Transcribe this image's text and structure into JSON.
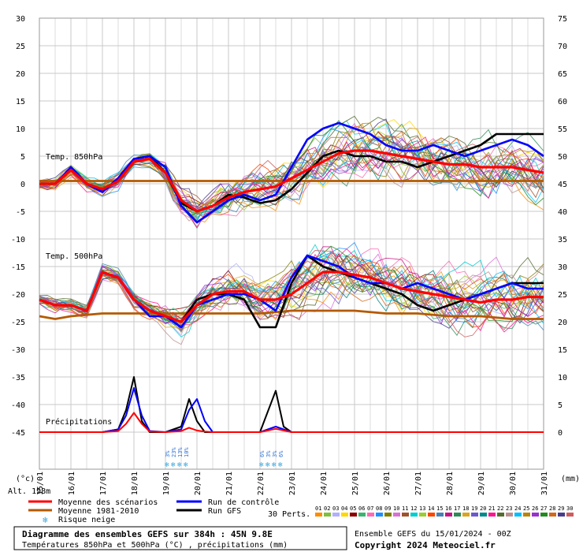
{
  "colors": {
    "grid": "#c8c8c8",
    "mean": "#ff0000",
    "control": "#0000ff",
    "gfs": "#000000",
    "climo": "#b45a00",
    "precip_fill": "#ff0000"
  },
  "labels": {
    "temp850": "Temp. 850hPa",
    "temp500": "Temp. 500hPa",
    "precip": "Précipitations",
    "unit_c": "(°c)",
    "unit_mm": "(mm)",
    "alt": "Alt. 198m",
    "legend_mean": "Moyenne des scénarios",
    "legend_climo": "Moyenne 1981-2010",
    "legend_snow": "Risque neige",
    "legend_control": "Run de contrôle",
    "legend_gfs": "Run GFS",
    "perts_label": "30 Perts.",
    "title_line1": "Diagramme des ensembles GEFS sur 384h : 45N 9.8E",
    "title_line2": "Températures 850hPa et 500hPa (°C) , précipitations (mm)",
    "ensemble_run": "Ensemble GEFS du 15/01/2024 - 00Z",
    "copyright": "Copyright 2024 Meteociel.fr"
  },
  "perts": [
    "01",
    "02",
    "03",
    "04",
    "05",
    "06",
    "07",
    "08",
    "09",
    "10",
    "11",
    "12",
    "13",
    "14",
    "15",
    "16",
    "17",
    "18",
    "19",
    "20",
    "21",
    "22",
    "23",
    "24",
    "25",
    "26",
    "27",
    "28",
    "29",
    "30"
  ],
  "pert_colors": [
    "#ff8c00",
    "#7fbf3f",
    "#b0b0ff",
    "#ffd700",
    "#8b0000",
    "#3cb371",
    "#ff69b4",
    "#1e90ff",
    "#808000",
    "#da70d6",
    "#a0522d",
    "#00ced1",
    "#9acd32",
    "#ff4500",
    "#4682b4",
    "#c71585",
    "#2e8b57",
    "#daa520",
    "#6a5acd",
    "#008b8b",
    "#ff1493",
    "#556b2f",
    "#bc8f8f",
    "#00bfff",
    "#b8860b",
    "#9932cc",
    "#228b22",
    "#d2691e",
    "#483d8b",
    "#cd5c5c"
  ],
  "snow_risk": [
    {
      "day": 19.0,
      "values": [
        "3%",
        "23%",
        "13%",
        "10%"
      ]
    },
    {
      "day": 22.0,
      "values": [
        "6%",
        "3%",
        "3%",
        "6%"
      ]
    }
  ],
  "chart_data": {
    "type": "line",
    "x_unit": "day of January 2024",
    "xlim": [
      15.0,
      31.0
    ],
    "x_ticks": [
      "15/01",
      "16/01",
      "17/01",
      "18/01",
      "19/01",
      "20/01",
      "21/01",
      "22/01",
      "23/01",
      "24/01",
      "25/01",
      "26/01",
      "27/01",
      "28/01",
      "29/01",
      "30/01",
      "31/01"
    ],
    "y_left_ticks": [
      30,
      25,
      20,
      15,
      10,
      5,
      0,
      -5,
      -10,
      -15,
      -20,
      -25,
      -30,
      -35,
      -40,
      -45
    ],
    "y_right_ticks": [
      75,
      70,
      65,
      60,
      55,
      50,
      45,
      40,
      35,
      30,
      25,
      20,
      15,
      10,
      5,
      0
    ],
    "ylim_left": [
      -45,
      30
    ],
    "y_right_relation": "right = left + 45",
    "grid": true,
    "series": [
      {
        "name": "Moyenne des scénarios",
        "panel": "t850",
        "x": [
          15.0,
          15.5,
          16.0,
          16.5,
          17.0,
          17.5,
          18.0,
          18.5,
          19.0,
          19.5,
          20.0,
          20.5,
          21.0,
          21.5,
          22.0,
          22.5,
          23.0,
          23.5,
          24.0,
          24.5,
          25.0,
          25.5,
          26.0,
          26.5,
          27.0,
          27.5,
          28.0,
          28.5,
          29.0,
          29.5,
          30.0,
          30.5,
          31.0
        ],
        "y": [
          0,
          0,
          2.5,
          0,
          -1,
          0.5,
          4,
          4.5,
          2,
          -3,
          -5,
          -4,
          -2.5,
          -1.5,
          -1,
          -0.5,
          1,
          2.5,
          4,
          5.5,
          6,
          6,
          5.5,
          5,
          4.5,
          4,
          3.5,
          3.5,
          3,
          3,
          3,
          2.5,
          2
        ]
      },
      {
        "name": "Moyenne des scénarios",
        "panel": "t500",
        "x": [
          15.0,
          15.5,
          16.0,
          16.5,
          17.0,
          17.5,
          18.0,
          18.5,
          19.0,
          19.5,
          20.0,
          20.5,
          21.0,
          21.5,
          22.0,
          22.5,
          23.0,
          23.5,
          24.0,
          24.5,
          25.0,
          25.5,
          26.0,
          26.5,
          27.0,
          27.5,
          28.0,
          28.5,
          29.0,
          29.5,
          30.0,
          30.5,
          31.0
        ],
        "y": [
          -21,
          -22,
          -22,
          -23,
          -16,
          -17,
          -21,
          -23,
          -24,
          -25,
          -22,
          -20,
          -19.5,
          -19.5,
          -21,
          -21,
          -20,
          -18,
          -16,
          -16,
          -16.5,
          -17,
          -18,
          -19,
          -19.5,
          -20,
          -20.5,
          -21,
          -21.5,
          -21,
          -21,
          -20.5,
          -20.5
        ]
      },
      {
        "name": "Run de contrôle",
        "panel": "t850",
        "x": [
          15.0,
          15.5,
          16.0,
          16.5,
          17.0,
          17.5,
          18.0,
          18.5,
          19.0,
          19.5,
          20.0,
          20.5,
          21.0,
          21.5,
          22.0,
          22.5,
          23.0,
          23.5,
          24.0,
          24.5,
          25.0,
          25.5,
          26.0,
          26.5,
          27.0,
          27.5,
          28.0,
          28.5,
          29.0,
          29.5,
          30.0,
          30.5,
          31.0
        ],
        "y": [
          0,
          0,
          3,
          0,
          -1.5,
          1,
          4.5,
          5,
          3,
          -4,
          -7,
          -5,
          -3,
          -2,
          -3,
          -2,
          3,
          8,
          10,
          11,
          10,
          9,
          7,
          6,
          6,
          7,
          6,
          5,
          6,
          7,
          8,
          7,
          5
        ]
      },
      {
        "name": "Run de contrôle",
        "panel": "t500",
        "x": [
          15.0,
          15.5,
          16.0,
          16.5,
          17.0,
          17.5,
          18.0,
          18.5,
          19.0,
          19.5,
          20.0,
          20.5,
          21.0,
          21.5,
          22.0,
          22.5,
          23.0,
          23.5,
          24.0,
          24.5,
          25.0,
          25.5,
          26.0,
          26.5,
          27.0,
          27.5,
          28.0,
          28.5,
          29.0,
          29.5,
          30.0,
          30.5,
          31.0
        ],
        "y": [
          -21,
          -22,
          -22,
          -23,
          -16,
          -17,
          -21,
          -24,
          -24,
          -26,
          -22,
          -21,
          -20,
          -20,
          -21,
          -23,
          -17,
          -13,
          -14,
          -15,
          -17,
          -18,
          -18,
          -19,
          -18,
          -19,
          -20,
          -21,
          -20,
          -19,
          -18,
          -19,
          -19
        ]
      },
      {
        "name": "Run GFS",
        "panel": "t850",
        "x": [
          15.0,
          15.5,
          16.0,
          16.5,
          17.0,
          17.5,
          18.0,
          18.5,
          19.0,
          19.5,
          20.0,
          20.5,
          21.0,
          21.5,
          22.0,
          22.5,
          23.0,
          23.5,
          24.0,
          24.5,
          25.0,
          25.5,
          26.0,
          26.5,
          27.0,
          27.5,
          28.0,
          28.5,
          29.0,
          29.5,
          30.0,
          30.5,
          31.0
        ],
        "y": [
          0,
          0,
          2.5,
          0,
          -1.5,
          1,
          4.5,
          5,
          2,
          -3.5,
          -5,
          -4,
          -2,
          -2.5,
          -3.5,
          -3,
          -1,
          2,
          5,
          6,
          5,
          5,
          4,
          4,
          3,
          4,
          5,
          6,
          7,
          9,
          9,
          9,
          9
        ]
      },
      {
        "name": "Run GFS",
        "panel": "t500",
        "x": [
          15.0,
          15.5,
          16.0,
          16.5,
          17.0,
          17.5,
          18.0,
          18.5,
          19.0,
          19.5,
          20.0,
          20.5,
          21.0,
          21.5,
          22.0,
          22.5,
          23.0,
          23.5,
          24.0,
          24.5,
          25.0,
          25.5,
          26.0,
          26.5,
          27.0,
          27.5,
          28.0,
          28.5,
          29.0,
          29.5,
          30.0,
          30.5,
          31.0
        ],
        "y": [
          -21,
          -22,
          -22,
          -23,
          -16,
          -17,
          -21,
          -23,
          -24,
          -25,
          -21,
          -20,
          -20,
          -21,
          -26,
          -26,
          -18,
          -13,
          -15,
          -16,
          -17,
          -18,
          -19,
          -20,
          -22,
          -23,
          -22,
          -21,
          -20,
          -19,
          -18,
          -18,
          -18
        ]
      },
      {
        "name": "Moyenne 1981-2010",
        "panel": "t850",
        "x": [
          15.0,
          17.0,
          19.0,
          21.0,
          23.0,
          25.0,
          27.0,
          29.0,
          31.0
        ],
        "y": [
          0.5,
          0.5,
          0.5,
          0.5,
          0.5,
          0.5,
          0.5,
          0.5,
          0.5
        ]
      },
      {
        "name": "Moyenne 1981-2010",
        "panel": "t500",
        "x": [
          15.0,
          15.5,
          16.0,
          17.0,
          18.0,
          19.0,
          20.0,
          21.0,
          22.0,
          23.0,
          24.0,
          25.0,
          26.0,
          27.0,
          28.0,
          29.0,
          30.0,
          31.0
        ],
        "y": [
          -24,
          -24.5,
          -24,
          -23.5,
          -23.5,
          -23.5,
          -23.5,
          -23.5,
          -23.5,
          -23,
          -23,
          -23,
          -23.5,
          -23.5,
          -24,
          -24,
          -24.5,
          -24.5
        ]
      },
      {
        "name": "Moyenne des scénarios",
        "panel": "precip",
        "x": [
          15.0,
          17.0,
          17.5,
          17.75,
          18.0,
          18.25,
          18.5,
          19.0,
          19.5,
          19.75,
          20.0,
          20.25,
          20.5,
          21.0,
          22.0,
          22.5,
          23.0,
          31.0
        ],
        "y": [
          0,
          0,
          0.2,
          1.5,
          3.5,
          1.5,
          0.1,
          0,
          0.2,
          0.8,
          0.3,
          0.1,
          0,
          0,
          0,
          0.6,
          0,
          0
        ]
      },
      {
        "name": "Run de contrôle",
        "panel": "precip",
        "x": [
          15.0,
          17.0,
          17.5,
          17.75,
          18.0,
          18.25,
          18.5,
          19.0,
          19.5,
          19.75,
          20.0,
          20.25,
          20.5,
          21.0,
          22.0,
          22.5,
          23.0,
          31.0
        ],
        "y": [
          0,
          0,
          0.5,
          3,
          8,
          3,
          0.2,
          0,
          0.5,
          4,
          6,
          2,
          0,
          0,
          0,
          1,
          0,
          0
        ]
      },
      {
        "name": "Run GFS",
        "panel": "precip",
        "x": [
          15.0,
          17.0,
          17.5,
          17.75,
          18.0,
          18.25,
          18.5,
          19.0,
          19.5,
          19.75,
          20.0,
          20.25,
          20.5,
          21.0,
          22.0,
          22.5,
          22.75,
          23.0,
          31.0
        ],
        "y": [
          0,
          0,
          0.5,
          4,
          10,
          2,
          0,
          0,
          1,
          6,
          2,
          0,
          0,
          0,
          0,
          7.5,
          1,
          0,
          0
        ]
      }
    ]
  }
}
